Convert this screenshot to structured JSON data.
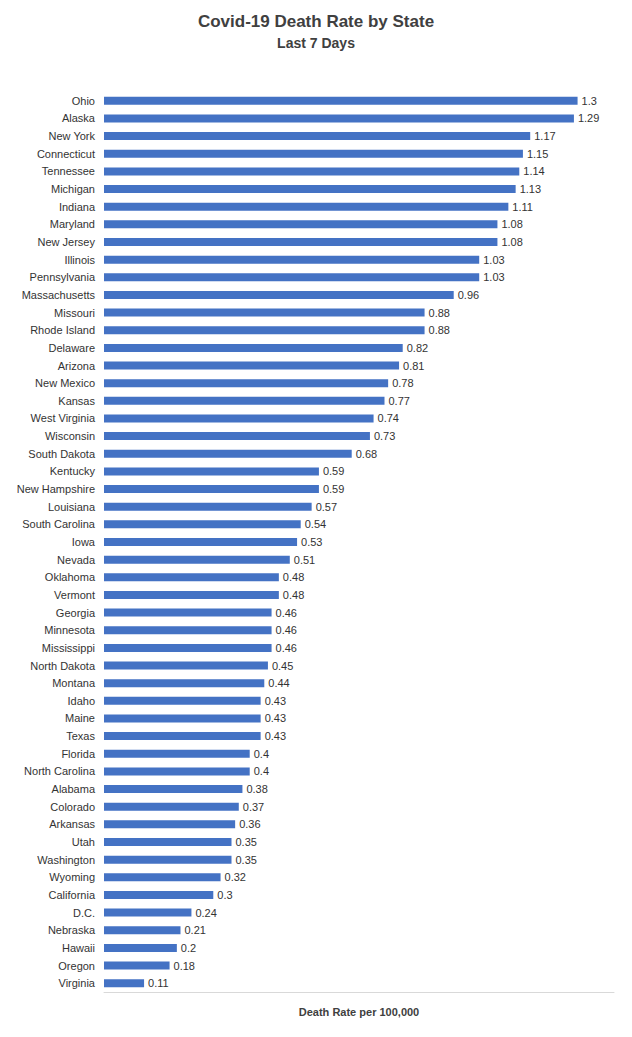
{
  "chart_data": {
    "type": "bar",
    "title": "Covid-19 Death Rate by State",
    "subtitle": "Last 7 Days",
    "x_label": "Death Rate per 100,000",
    "orientation": "horizontal",
    "data_labels": true,
    "tick_labels": "y",
    "grid": false,
    "color": "#4472c4",
    "xlim": [
      0,
      1.4
    ],
    "categories": [
      "Ohio",
      "Alaska",
      "New York",
      "Connecticut",
      "Tennessee",
      "Michigan",
      "Indiana",
      "Maryland",
      "New Jersey",
      "Illinois",
      "Pennsylvania",
      "Massachusetts",
      "Missouri",
      "Rhode Island",
      "Delaware",
      "Arizona",
      "New Mexico",
      "Kansas",
      "West Virginia",
      "Wisconsin",
      "South Dakota",
      "Kentucky",
      "New Hampshire",
      "Louisiana",
      "South Carolina",
      "Iowa",
      "Nevada",
      "Oklahoma",
      "Vermont",
      "Georgia",
      "Minnesota",
      "Mississippi",
      "North Dakota",
      "Montana",
      "Idaho",
      "Maine",
      "Texas",
      "Florida",
      "North Carolina",
      "Alabama",
      "Colorado",
      "Arkansas",
      "Utah",
      "Washington",
      "Wyoming",
      "California",
      "D.C.",
      "Nebraska",
      "Hawaii",
      "Oregon",
      "Virginia"
    ],
    "values": [
      1.3,
      1.29,
      1.17,
      1.15,
      1.14,
      1.13,
      1.11,
      1.08,
      1.08,
      1.03,
      1.03,
      0.96,
      0.88,
      0.88,
      0.82,
      0.81,
      0.78,
      0.77,
      0.74,
      0.73,
      0.68,
      0.59,
      0.59,
      0.57,
      0.54,
      0.53,
      0.51,
      0.48,
      0.48,
      0.46,
      0.46,
      0.46,
      0.45,
      0.44,
      0.43,
      0.43,
      0.43,
      0.4,
      0.4,
      0.38,
      0.37,
      0.36,
      0.35,
      0.35,
      0.32,
      0.3,
      0.24,
      0.21,
      0.2,
      0.18,
      0.11
    ]
  }
}
